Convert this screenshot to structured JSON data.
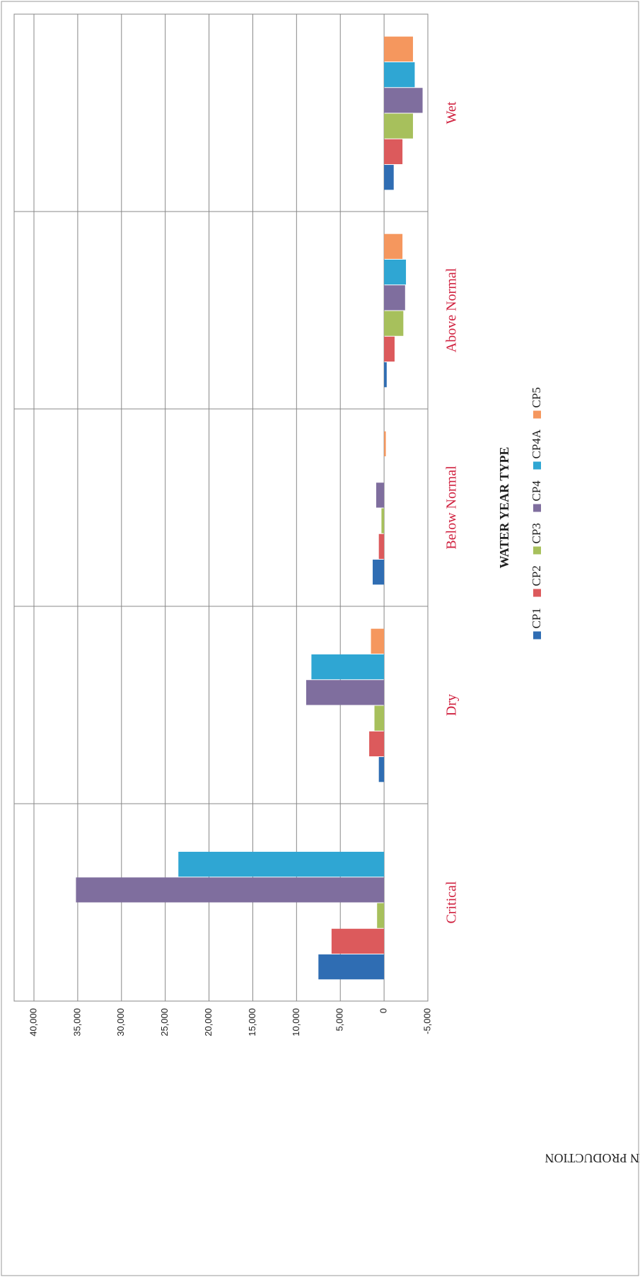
{
  "chart_data": {
    "type": "bar",
    "x_label": "WATER YEAR TYPE",
    "y_label": "CHANGE IN PRODUCTION",
    "categories": [
      "Critical",
      "Dry",
      "Below Normal",
      "Above Normal",
      "Wet"
    ],
    "series": [
      {
        "name": "CP1",
        "color": "#2f6db3",
        "values": [
          7500,
          600,
          1300,
          -300,
          -1100
        ]
      },
      {
        "name": "CP2",
        "color": "#dc5a5c",
        "values": [
          6000,
          1700,
          600,
          -1200,
          -2100
        ]
      },
      {
        "name": "CP3",
        "color": "#a7c05c",
        "values": [
          800,
          1100,
          300,
          -2200,
          -3300
        ]
      },
      {
        "name": "CP4",
        "color": "#7f6e9e",
        "values": [
          35200,
          8900,
          900,
          -2400,
          -4400
        ]
      },
      {
        "name": "CP4A",
        "color": "#2fa6d3",
        "values": [
          23500,
          8300,
          0,
          -2500,
          -3500
        ]
      },
      {
        "name": "CP5",
        "color": "#f5975e",
        "values": [
          0,
          1500,
          -200,
          -2100,
          -3300
        ]
      }
    ],
    "ylim": [
      -5000,
      40000
    ],
    "yticks": [
      {
        "value": -5000,
        "label": "-5,000"
      },
      0,
      {
        "value": 5000,
        "label": "5,000"
      },
      {
        "value": 10000,
        "label": "10,000"
      },
      {
        "value": 15000,
        "label": "15,000"
      },
      {
        "value": 20000,
        "label": "20,000"
      },
      {
        "value": 25000,
        "label": "25,000"
      },
      {
        "value": 30000,
        "label": "30,000"
      },
      {
        "value": 35000,
        "label": "35,000"
      },
      {
        "value": 40000,
        "label": "40,000"
      }
    ],
    "grid": true
  }
}
